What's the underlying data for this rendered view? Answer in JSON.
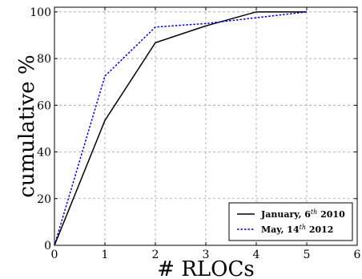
{
  "chart_data": {
    "type": "line",
    "title": "",
    "xlabel": "# RLOCs",
    "ylabel": "cumulative %",
    "xlim": [
      0,
      6
    ],
    "ylim": [
      0,
      102
    ],
    "x_ticks": [
      0,
      1,
      2,
      3,
      4,
      5,
      6
    ],
    "y_ticks": [
      0,
      20,
      40,
      60,
      80,
      100
    ],
    "grid": true,
    "legend_position": "lower-right",
    "series": [
      {
        "name_parts": [
          "January, 6",
          "th",
          " 2010"
        ],
        "color": "#000000",
        "dash": "solid",
        "x": [
          0,
          1,
          2,
          3,
          4,
          5
        ],
        "y": [
          0,
          53.5,
          86.8,
          94.0,
          100,
          100
        ]
      },
      {
        "name_parts": [
          "May, 14",
          "th",
          " 2012"
        ],
        "color": "#0000cc",
        "dash": "dotted",
        "x": [
          0,
          1,
          2,
          3,
          4,
          5
        ],
        "y": [
          0,
          72.5,
          93.5,
          95.0,
          97.5,
          100
        ]
      }
    ]
  }
}
